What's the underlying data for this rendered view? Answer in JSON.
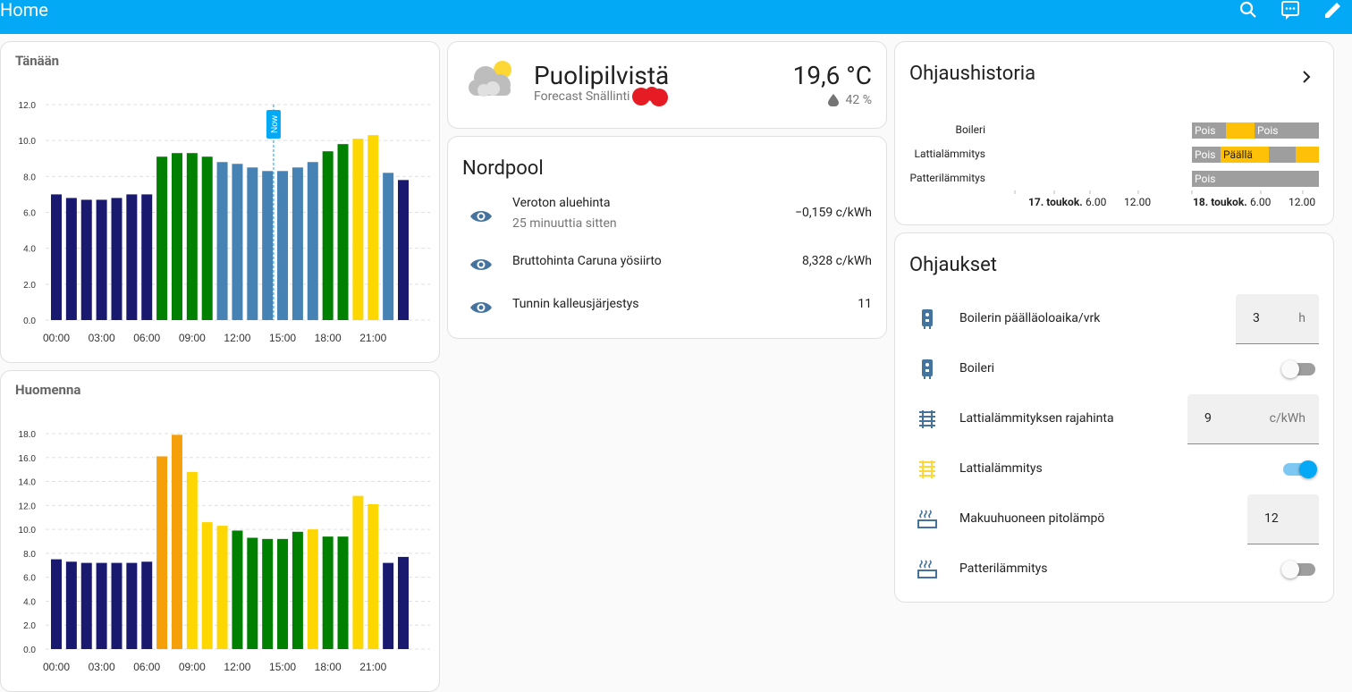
{
  "header": {
    "title": "Home"
  },
  "today": {
    "type": "bar",
    "title": "Tänään",
    "categories": [
      "00:00",
      null,
      null,
      "03:00",
      null,
      null,
      "06:00",
      null,
      null,
      "09:00",
      null,
      null,
      "12:00",
      null,
      null,
      "15:00",
      null,
      null,
      "18:00",
      null,
      null,
      "21:00",
      null,
      null
    ],
    "values": [
      7.0,
      6.8,
      6.7,
      6.7,
      6.8,
      7.0,
      7.0,
      9.1,
      9.3,
      9.3,
      9.1,
      8.8,
      8.7,
      8.5,
      8.3,
      8.3,
      8.5,
      8.8,
      9.4,
      9.8,
      10.1,
      10.3,
      8.2,
      7.8
    ],
    "colors": [
      "#191970",
      "#191970",
      "#191970",
      "#191970",
      "#191970",
      "#191970",
      "#191970",
      "#008000",
      "#008000",
      "#008000",
      "#008000",
      "#4682b4",
      "#4682b4",
      "#4682b4",
      "#4682b4",
      "#4682b4",
      "#4682b4",
      "#4682b4",
      "#008000",
      "#008000",
      "#ffd700",
      "#ffd700",
      "#4682b4",
      "#191970"
    ],
    "ylim": [
      0,
      12
    ],
    "yticks": [
      {
        "value": 0,
        "label": "0.0"
      },
      {
        "value": 2,
        "label": "2.0"
      },
      {
        "value": 4,
        "label": "4.0"
      },
      {
        "value": 6,
        "label": "6.0"
      },
      {
        "value": 8,
        "label": "8.0"
      },
      {
        "value": 10,
        "label": "10.0"
      },
      {
        "value": 12,
        "label": "12.0"
      }
    ],
    "grid": true,
    "now": {
      "label": "Now",
      "x": 14.4
    }
  },
  "tomorrow": {
    "type": "bar",
    "title": "Huomenna",
    "categories": [
      "00:00",
      null,
      null,
      "03:00",
      null,
      null,
      "06:00",
      null,
      null,
      "09:00",
      null,
      null,
      "12:00",
      null,
      null,
      "15:00",
      null,
      null,
      "18:00",
      null,
      null,
      "21:00",
      null,
      null
    ],
    "values": [
      7.5,
      7.3,
      7.2,
      7.2,
      7.2,
      7.2,
      7.3,
      16.1,
      17.9,
      14.8,
      10.6,
      10.3,
      9.9,
      9.3,
      9.2,
      9.2,
      9.8,
      10.0,
      9.4,
      9.4,
      12.8,
      12.1,
      7.2,
      7.7
    ],
    "colors": [
      "#191970",
      "#191970",
      "#191970",
      "#191970",
      "#191970",
      "#191970",
      "#191970",
      "#f5a00a",
      "#f5a00a",
      "#ffd700",
      "#ffd700",
      "#ffd700",
      "#008000",
      "#008000",
      "#008000",
      "#008000",
      "#008000",
      "#ffd700",
      "#008000",
      "#008000",
      "#ffd700",
      "#ffd700",
      "#191970",
      "#191970"
    ],
    "ylim": [
      0,
      18
    ],
    "yticks": [
      {
        "value": 0,
        "label": "0.0"
      },
      {
        "value": 2,
        "label": "2.0"
      },
      {
        "value": 4,
        "label": "4.0"
      },
      {
        "value": 6,
        "label": "6.0"
      },
      {
        "value": 8,
        "label": "8.0"
      },
      {
        "value": 10,
        "label": "10.0"
      },
      {
        "value": 12,
        "label": "12.0"
      },
      {
        "value": 14,
        "label": "14.0"
      },
      {
        "value": 16,
        "label": "16.0"
      },
      {
        "value": 18,
        "label": "18.0"
      }
    ],
    "grid": true
  },
  "weather": {
    "condition": "Puolipilvistä",
    "source": "Forecast Snällinti",
    "temperature": "19,6 °C",
    "humidity": "42 %"
  },
  "nordpool": {
    "title": "Nordpool",
    "rows": [
      {
        "name": "Veroton aluehinta",
        "secondary": "25 minuuttia sitten",
        "value": "−0,159 c/kWh"
      },
      {
        "name": "Bruttohinta Caruna yösiirto",
        "value": "8,328 c/kWh"
      },
      {
        "name": "Tunnin kalleusjärjestys",
        "value": "11"
      }
    ]
  },
  "history": {
    "title": "Ohjaushistoria",
    "rows": [
      {
        "label": "Boileri",
        "segments": [
          "Pois",
          "Pois"
        ]
      },
      {
        "label": "Lattialämmitys",
        "segments": [
          "Pois",
          "Päällä"
        ]
      },
      {
        "label": "Patterilämmitys",
        "segments": [
          "Pois"
        ]
      }
    ],
    "axis": [
      "17. toukok.",
      "6.00",
      "12.00",
      "18. toukok.",
      "6.00",
      "12.00"
    ]
  },
  "controls": {
    "title": "Ohjaukset",
    "rows": [
      {
        "name": "Boilerin päälläoloaika/vrk",
        "value": "3",
        "unit": "h"
      },
      {
        "name": "Boileri",
        "on": false
      },
      {
        "name": "Lattialämmityksen rajahinta",
        "value": "9",
        "unit": "c/kWh"
      },
      {
        "name": "Lattialämmitys",
        "on": true
      },
      {
        "name": "Makuuhuoneen pitolämpö",
        "value": "12"
      },
      {
        "name": "Patterilämmitys",
        "on": false
      }
    ]
  }
}
